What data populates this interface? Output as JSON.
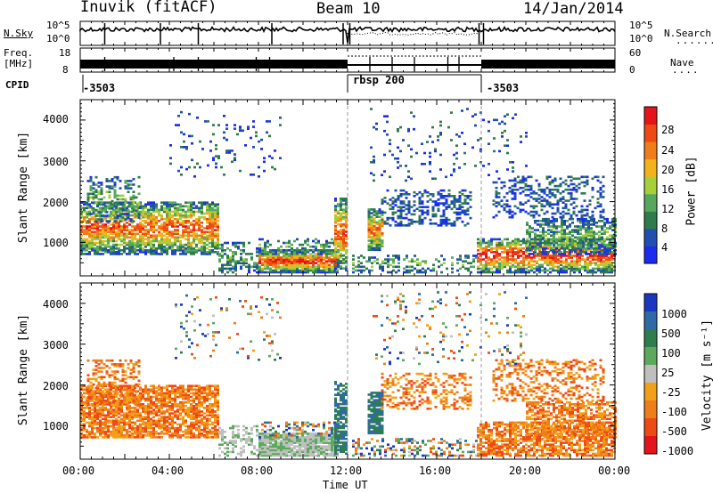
{
  "header": {
    "station": "Inuvik (fitACF)",
    "beam": "Beam 10",
    "date": "14/Jan/2014"
  },
  "summary": {
    "nsky_label": "N.Sky",
    "nsky_ticks": [
      "10^5",
      "10^0"
    ],
    "nsearch_label": "N.Search",
    "nsearch_ticks": [
      "10^5",
      "10^0"
    ],
    "freq_label": "Freq.",
    "freq_unit": "[MHz]",
    "freq_ticks": [
      "18",
      "8"
    ],
    "nave_label": "Nave",
    "nave_ticks": [
      "60",
      "0"
    ],
    "cpid_label": "CPID",
    "cpid_segments": [
      {
        "label": "-3503",
        "start_hour": 0,
        "end_hour": 12
      },
      {
        "label": "rbsp 200",
        "start_hour": 12,
        "end_hour": 18
      },
      {
        "label": "-3503",
        "start_hour": 18,
        "end_hour": 24
      }
    ]
  },
  "colors": {
    "power_scale": [
      "#1a2cf0",
      "#1f4fb0",
      "#2e7b4c",
      "#56a85c",
      "#a7cf3a",
      "#f3b21a",
      "#ef7d1a",
      "#ef4a14",
      "#e5141b"
    ],
    "velocity_scale": [
      "#1a37c2",
      "#2e6aa4",
      "#2d7e4c",
      "#5ca95e",
      "#bfbfbf",
      "#f2a017",
      "#ef7d1a",
      "#ef4a14",
      "#e5141b"
    ]
  },
  "chart_data": [
    {
      "type": "heatmap",
      "name": "power",
      "ylabel": "Slant Range [km]",
      "x_range_hours": [
        0,
        24
      ],
      "ylim": [
        180,
        4500
      ],
      "yticks": [
        1000,
        2000,
        3000,
        4000
      ],
      "colorbar_label": "Power [dB]",
      "colorbar_ticks": [
        4,
        8,
        12,
        16,
        20,
        24,
        28
      ],
      "colorbar_range": [
        0,
        30
      ]
    },
    {
      "type": "heatmap",
      "name": "velocity",
      "ylabel": "Slant Range [km]",
      "x_range_hours": [
        0,
        24
      ],
      "ylim": [
        180,
        4500
      ],
      "yticks": [
        1000,
        2000,
        3000,
        4000
      ],
      "colorbar_label": "Velocity [m s⁻¹]",
      "colorbar_ticks": [
        1000,
        500,
        100,
        25,
        -25,
        -100,
        -500,
        -1000
      ],
      "xlabel": "Time UT",
      "xtick_labels": [
        "00:00",
        "04:00",
        "08:00",
        "12:00",
        "16:00",
        "20:00",
        "00:00"
      ],
      "xtick_hours": [
        0,
        4,
        8,
        12,
        16,
        20,
        24
      ]
    }
  ]
}
